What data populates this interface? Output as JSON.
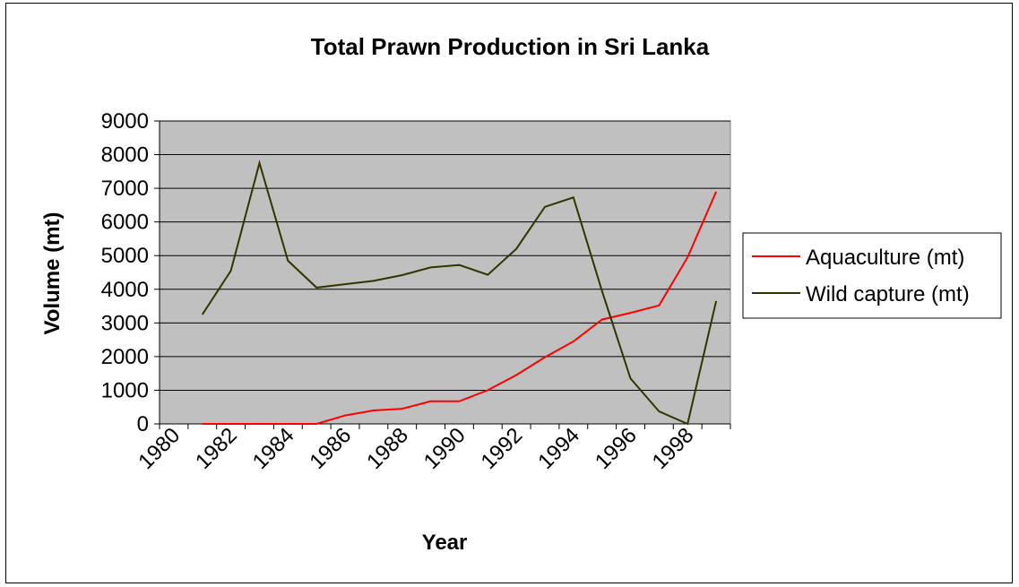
{
  "chart_data": {
    "type": "line",
    "title": "Total Prawn Production in Sri Lanka",
    "xlabel": "Year",
    "ylabel": "Volume (mt)",
    "ylim": [
      0,
      9000
    ],
    "yticks": [
      "0",
      "1000",
      "2000",
      "3000",
      "4000",
      "5000",
      "6000",
      "7000",
      "8000",
      "9000"
    ],
    "xticks": [
      "1980",
      "1982",
      "1984",
      "1986",
      "1988",
      "1990",
      "1992",
      "1994",
      "1996",
      "1998"
    ],
    "grid": true,
    "legend_position": "right",
    "x": [
      "1981",
      "1982",
      "1983",
      "1984",
      "1985",
      "1986",
      "1987",
      "1988",
      "1989",
      "1990",
      "1991",
      "1992",
      "1993",
      "1994",
      "1995",
      "1996",
      "1997",
      "1998",
      "1999"
    ],
    "series": [
      {
        "name": "Aquaculture (mt)",
        "color": "#ff0000",
        "values": [
          0,
          0,
          0,
          0,
          0,
          250,
          400,
          450,
          670,
          670,
          1000,
          1450,
          1980,
          2450,
          3100,
          3300,
          3520,
          4950,
          6900
        ]
      },
      {
        "name": "Wild capture (mt)",
        "color": "#333300",
        "values": [
          3250,
          4550,
          7750,
          4850,
          4050,
          4150,
          4250,
          4420,
          4650,
          4720,
          4430,
          5200,
          6450,
          6730,
          3950,
          1350,
          370,
          0,
          3650
        ]
      }
    ],
    "plot_background": "#c0c0c0"
  }
}
